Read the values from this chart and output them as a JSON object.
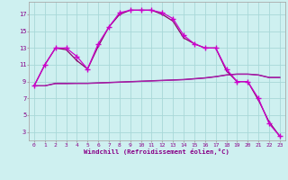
{
  "x": [
    0,
    1,
    2,
    3,
    4,
    5,
    6,
    7,
    8,
    9,
    10,
    11,
    12,
    13,
    14,
    15,
    16,
    17,
    18,
    19,
    20,
    21,
    22,
    23
  ],
  "y_jagged": [
    8.5,
    11.0,
    13.0,
    13.0,
    12.0,
    10.5,
    13.5,
    15.5,
    17.2,
    17.5,
    17.5,
    17.5,
    17.2,
    16.5,
    14.5,
    13.5,
    13.0,
    13.0,
    10.5,
    9.0,
    9.0,
    7.0,
    4.0,
    2.5
  ],
  "y_smooth": [
    8.5,
    11.0,
    13.0,
    12.8,
    11.5,
    10.5,
    13.2,
    15.5,
    17.0,
    17.5,
    17.5,
    17.5,
    17.0,
    16.2,
    14.2,
    13.5,
    13.0,
    13.0,
    10.3,
    9.0,
    9.0,
    6.8,
    4.2,
    2.5
  ],
  "y_flat1": [
    8.5,
    8.5,
    8.8,
    8.8,
    8.8,
    8.8,
    8.85,
    8.9,
    8.95,
    9.0,
    9.05,
    9.1,
    9.15,
    9.2,
    9.25,
    9.35,
    9.45,
    9.6,
    9.8,
    9.9,
    9.9,
    9.8,
    9.5,
    9.5
  ],
  "y_flat2": [
    8.5,
    8.5,
    8.75,
    8.75,
    8.78,
    8.78,
    8.82,
    8.87,
    8.92,
    8.97,
    9.02,
    9.07,
    9.12,
    9.17,
    9.22,
    9.32,
    9.42,
    9.57,
    9.77,
    9.87,
    9.87,
    9.77,
    9.47,
    9.47
  ],
  "bg_color": "#cef0f0",
  "grid_color": "#a8d8d8",
  "color_jagged": "#cc00cc",
  "color_smooth": "#880066",
  "color_flat1": "#880088",
  "color_flat2": "#aa22aa",
  "xlabel": "Windchill (Refroidissement éolien,°C)",
  "yticks": [
    3,
    5,
    7,
    9,
    11,
    13,
    15,
    17
  ],
  "xticks": [
    0,
    1,
    2,
    3,
    4,
    5,
    6,
    7,
    8,
    9,
    10,
    11,
    12,
    13,
    14,
    15,
    16,
    17,
    18,
    19,
    20,
    21,
    22,
    23
  ],
  "ylim": [
    2.0,
    18.5
  ],
  "xlim": [
    -0.5,
    23.5
  ]
}
